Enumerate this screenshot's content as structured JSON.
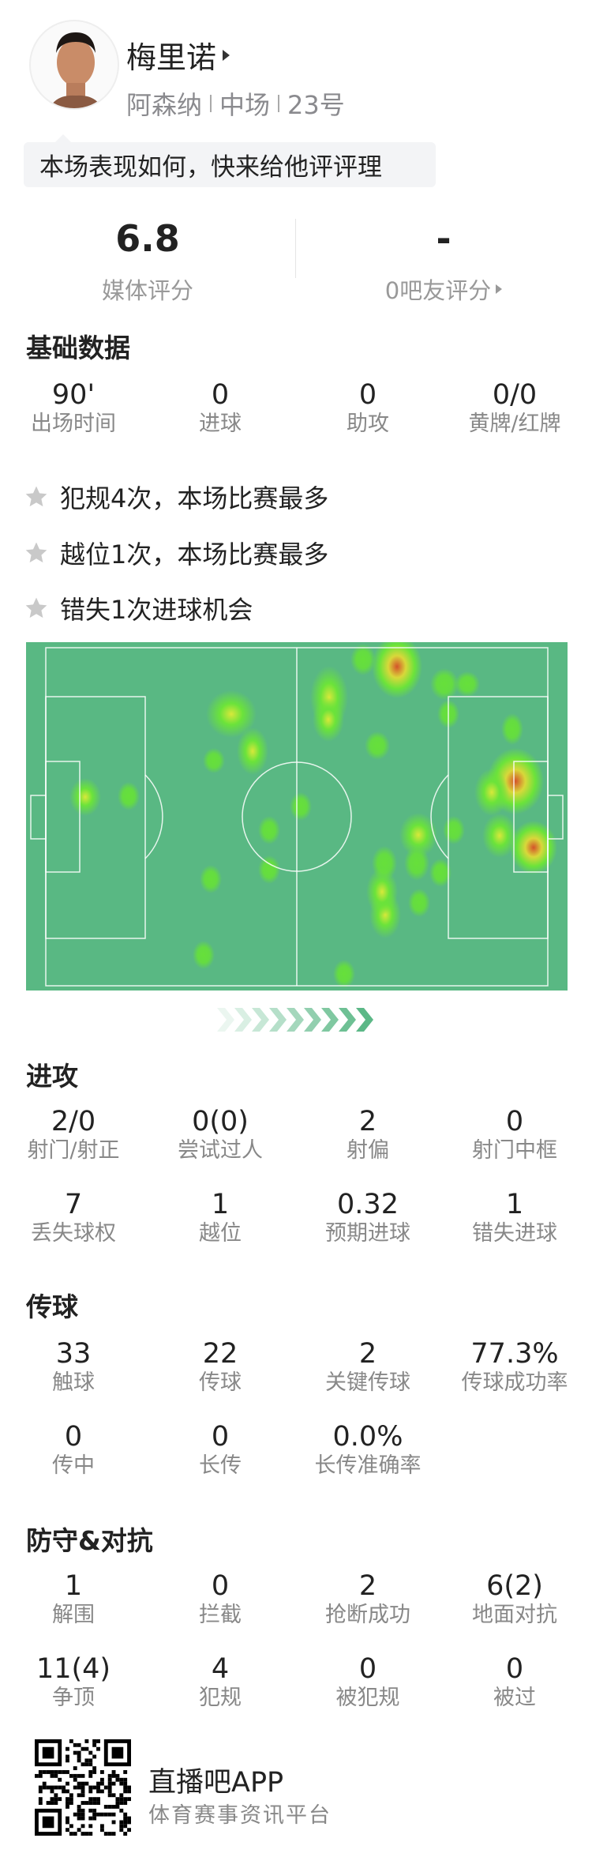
{
  "player": {
    "name": "梅里诺",
    "team": "阿森纳",
    "position": "中场",
    "number": "23号"
  },
  "prompt": "本场表现如何，快来给他评评理",
  "ratings": {
    "media_value": "6.8",
    "media_label": "媒体评分",
    "fan_value": "-",
    "fan_label": "0吧友评分"
  },
  "basic": {
    "title": "基础数据",
    "stats": [
      {
        "value": "90'",
        "label": "出场时间"
      },
      {
        "value": "0",
        "label": "进球"
      },
      {
        "value": "0",
        "label": "助攻"
      },
      {
        "value": "0/0",
        "label": "黄牌/红牌"
      }
    ]
  },
  "highlights": [
    "犯规4次，本场比赛最多",
    "越位1次，本场比赛最多",
    "错失1次进球机会"
  ],
  "attack": {
    "title": "进攻",
    "stats": [
      {
        "value": "2/0",
        "label": "射门/射正"
      },
      {
        "value": "0(0)",
        "label": "尝试过人"
      },
      {
        "value": "2",
        "label": "射偏"
      },
      {
        "value": "0",
        "label": "射门中框"
      },
      {
        "value": "7",
        "label": "丢失球权"
      },
      {
        "value": "1",
        "label": "越位"
      },
      {
        "value": "0.32",
        "label": "预期进球"
      },
      {
        "value": "1",
        "label": "错失进球"
      }
    ]
  },
  "passing": {
    "title": "传球",
    "stats": [
      {
        "value": "33",
        "label": "触球"
      },
      {
        "value": "22",
        "label": "传球"
      },
      {
        "value": "2",
        "label": "关键传球"
      },
      {
        "value": "77.3%",
        "label": "传球成功率"
      },
      {
        "value": "0",
        "label": "传中"
      },
      {
        "value": "0",
        "label": "长传"
      },
      {
        "value": "0.0%",
        "label": "长传准确率"
      }
    ]
  },
  "defense": {
    "title": "防守&对抗",
    "stats": [
      {
        "value": "1",
        "label": "解围"
      },
      {
        "value": "0",
        "label": "拦截"
      },
      {
        "value": "2",
        "label": "抢断成功"
      },
      {
        "value": "6(2)",
        "label": "地面对抗"
      },
      {
        "value": "11(4)",
        "label": "争顶"
      },
      {
        "value": "4",
        "label": "犯规"
      },
      {
        "value": "0",
        "label": "被犯规"
      },
      {
        "value": "0",
        "label": "被过"
      }
    ]
  },
  "footer": {
    "app_name": "直播吧APP",
    "slogan": "体育赛事资讯平台"
  },
  "colors": {
    "pitch": "#59b883",
    "arrow": "#5cb887",
    "star": "#c9c9c9"
  },
  "icons": [
    "avatar",
    "play-triangle-icon",
    "star-icon",
    "chevron-right-icon",
    "qr-code"
  ]
}
